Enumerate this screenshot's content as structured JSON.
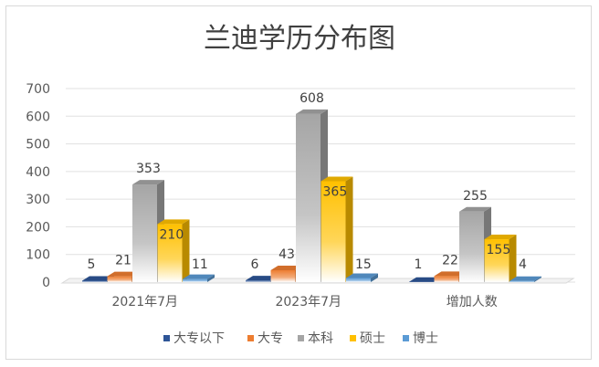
{
  "chart_data": {
    "type": "bar",
    "title": "兰迪学历分布图",
    "categories": [
      "2021年7月",
      "2023年7月",
      "增加人数"
    ],
    "y_ticks": [
      "0",
      "100",
      "200",
      "300",
      "400",
      "500",
      "600",
      "700"
    ],
    "ylim": [
      0,
      700
    ],
    "grid": true,
    "legend_position": "bottom",
    "series": [
      {
        "name": "大专以下",
        "values": [
          5,
          6,
          1
        ],
        "labels": [
          "5",
          "6",
          "1"
        ],
        "color": "#2e5597"
      },
      {
        "name": "大专",
        "values": [
          21,
          43,
          22
        ],
        "labels": [
          "21",
          "43",
          "22"
        ],
        "color": "#ed7d31"
      },
      {
        "name": "本科",
        "values": [
          353,
          608,
          255
        ],
        "labels": [
          "353",
          "608",
          "255"
        ],
        "color": "#a5a5a5"
      },
      {
        "name": "硕士",
        "values": [
          210,
          365,
          155
        ],
        "labels": [
          "210",
          "365",
          "155"
        ],
        "color": "#ffc000"
      },
      {
        "name": "博士",
        "values": [
          11,
          15,
          4
        ],
        "labels": [
          "11",
          "15",
          "4"
        ],
        "color": "#5b9bd5"
      }
    ]
  }
}
